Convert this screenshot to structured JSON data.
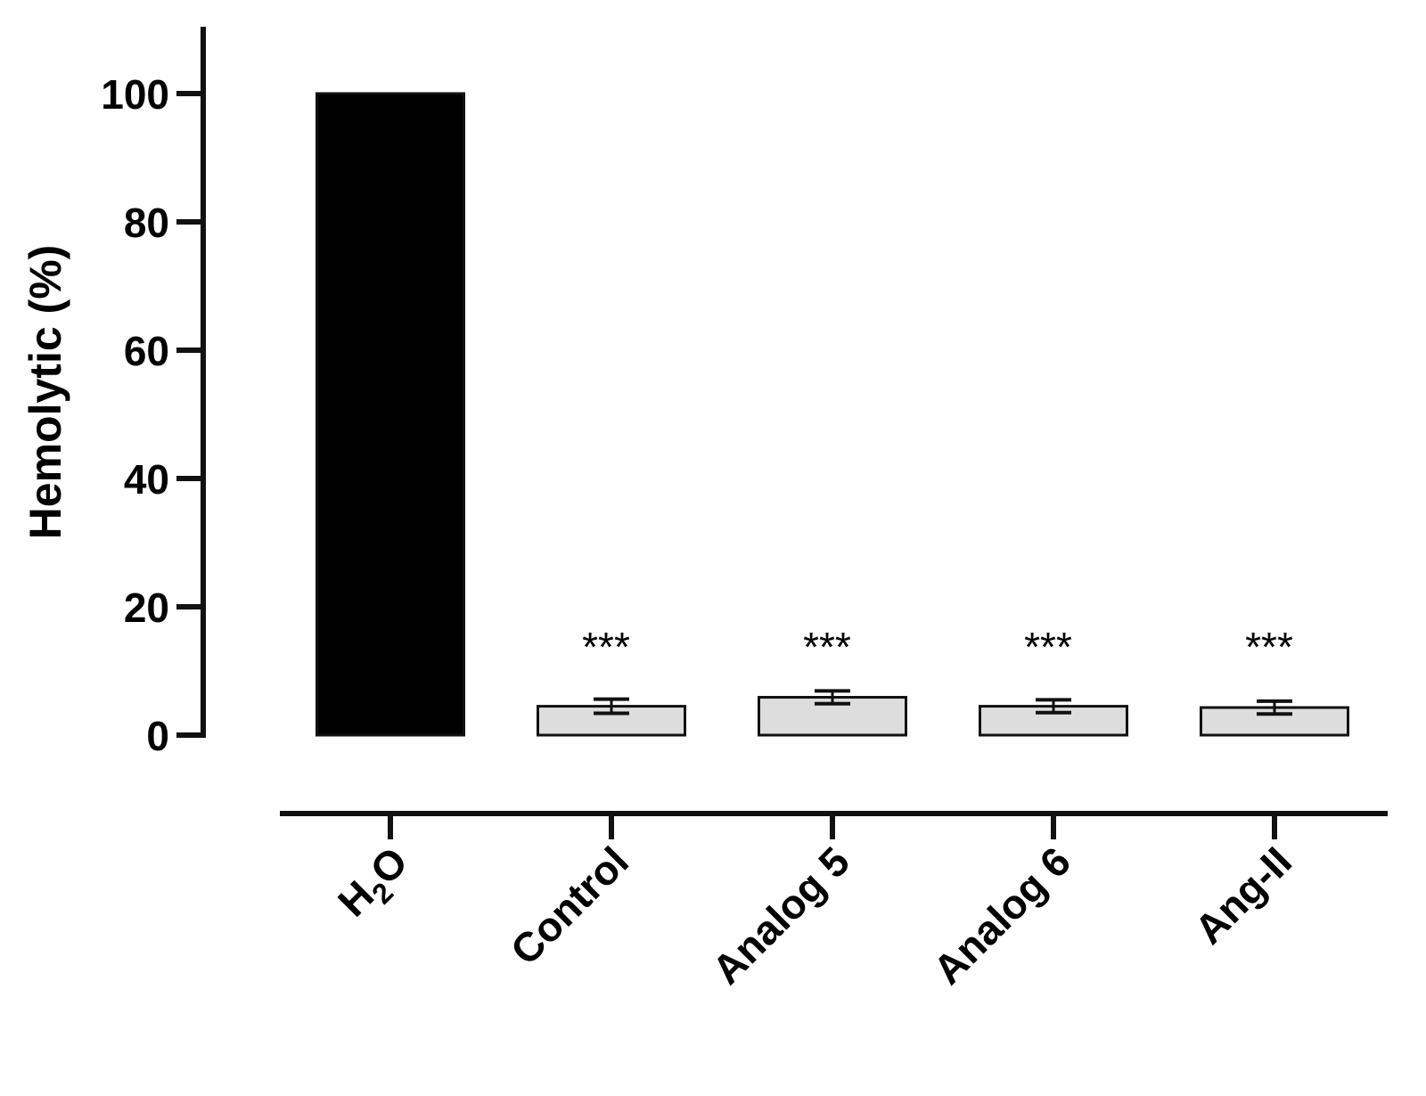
{
  "chart_data": {
    "type": "bar",
    "title": "",
    "xlabel": "",
    "ylabel": "Hemolytic (%)",
    "ylim": [
      0,
      110
    ],
    "yticks": [
      0,
      20,
      40,
      60,
      80,
      100
    ],
    "ytick_labels": [
      "0",
      "20",
      "40",
      "60",
      "80",
      "100"
    ],
    "categories": [
      "H2O",
      "Control",
      "Analog 5",
      "Analog 6",
      "Ang-II"
    ],
    "values": [
      100,
      4.5,
      5.9,
      4.5,
      4.3
    ],
    "errors": [
      0,
      1.1,
      1.0,
      1.0,
      1.0
    ],
    "annotations": [
      "",
      "***",
      "***",
      "***",
      "***"
    ],
    "bar_colors": [
      "#000000",
      "#dddddd",
      "#dddddd",
      "#dddddd",
      "#dddddd"
    ],
    "grid": false
  }
}
